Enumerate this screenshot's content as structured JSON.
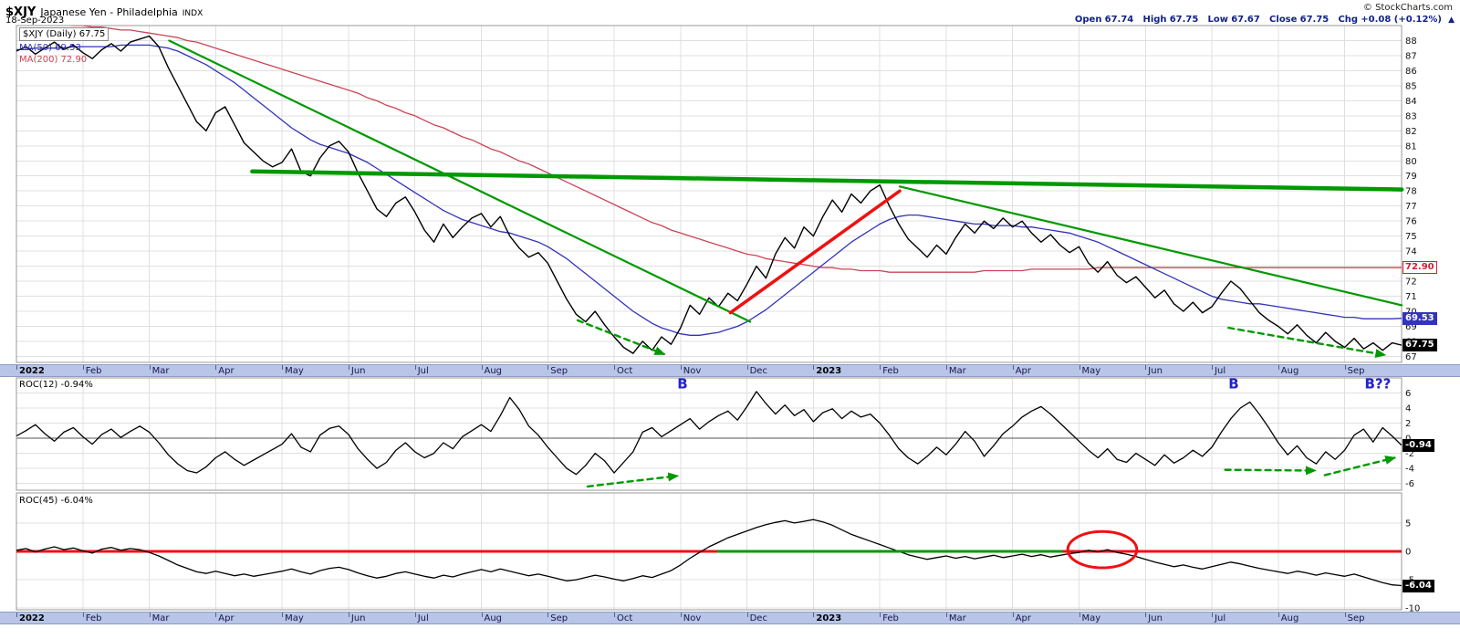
{
  "header": {
    "symbol": "$XJY",
    "name": "Japanese Yen - Philadelphia",
    "exchange": "INDX",
    "date": "18-Sep-2023",
    "copyright": "© StockCharts.com",
    "quote": {
      "open_label": "Open",
      "open": "67.74",
      "high_label": "High",
      "high": "67.75",
      "low_label": "Low",
      "low": "67.67",
      "close_label": "Close",
      "close": "67.75",
      "chg_label": "Chg",
      "chg": "+0.08 (+0.12%)",
      "chg_up_icon": "▲"
    }
  },
  "legend": {
    "main_price": "$XJY (Daily) 67.75",
    "ma50": "MA(50) 69.53",
    "ma200": "MA(200) 72.90",
    "roc12": "ROC(12) -0.94%",
    "roc45": "ROC(45) -6.04%"
  },
  "last_values": {
    "price": "67.75",
    "ma50": "69.53",
    "ma200": "72.90",
    "roc12": "-0.94",
    "roc45": "-6.04"
  },
  "colors": {
    "price": "#000000",
    "ma50": "#3333bb",
    "ma200": "#cc4455",
    "green": "#009900",
    "red": "#ee1111",
    "blue_label": "#2222cc",
    "grid": "#e0e0e0",
    "border": "#999999",
    "axis_strip": "#b9c5e8",
    "quote": "#112288"
  },
  "axis": {
    "months": [
      {
        "label": "2022",
        "bold": true
      },
      {
        "label": "Feb"
      },
      {
        "label": "Mar"
      },
      {
        "label": "Apr"
      },
      {
        "label": "May"
      },
      {
        "label": "Jun"
      },
      {
        "label": "Jul"
      },
      {
        "label": "Aug"
      },
      {
        "label": "Sep"
      },
      {
        "label": "Oct"
      },
      {
        "label": "Nov"
      },
      {
        "label": "Dec"
      },
      {
        "label": "2023",
        "bold": true
      },
      {
        "label": "Feb"
      },
      {
        "label": "Mar"
      },
      {
        "label": "Apr"
      },
      {
        "label": "May"
      },
      {
        "label": "Jun"
      },
      {
        "label": "Jul"
      },
      {
        "label": "Aug"
      },
      {
        "label": "Sep"
      }
    ],
    "price_ticks": [
      88,
      87,
      86,
      85,
      84,
      83,
      82,
      81,
      80,
      79,
      78,
      77,
      76,
      75,
      74,
      73,
      72,
      71,
      70,
      69,
      68,
      67
    ],
    "roc12_ticks": [
      6,
      4,
      2,
      0,
      -2,
      -4,
      -6
    ],
    "roc45_ticks": [
      5,
      0,
      -5,
      -10
    ]
  },
  "annotations": {
    "main": {
      "thick_resistance": {
        "from": [
          3.55,
          79.3
        ],
        "to": [
          20.86,
          78.1
        ],
        "color": "#009900",
        "width": 4.5
      },
      "downtrend_2022": {
        "from": [
          2.3,
          88.0
        ],
        "to": [
          11.05,
          69.3
        ],
        "color": "#009900",
        "width": 2.2
      },
      "downtrend_2023": {
        "from": [
          13.3,
          78.3
        ],
        "to": [
          20.86,
          70.4
        ],
        "color": "#009900",
        "width": 2.2
      },
      "rally_line": {
        "from": [
          10.75,
          69.9
        ],
        "to": [
          13.3,
          78.0
        ],
        "color": "#ee1111",
        "width": 3.5
      },
      "dashed_arrows": [
        {
          "from": [
            8.45,
            69.4
          ],
          "to": [
            9.75,
            67.15
          ],
          "color": "#009900",
          "width": 2.4,
          "dashed": true
        },
        {
          "from": [
            18.25,
            68.9
          ],
          "to": [
            20.6,
            67.1
          ],
          "color": "#009900",
          "width": 2.4,
          "dashed": true
        }
      ]
    },
    "roc12": {
      "b_labels": [
        {
          "m": 9.95,
          "v": 6.6,
          "text": "B"
        },
        {
          "m": 18.25,
          "v": 6.6,
          "text": "B"
        },
        {
          "m": 20.3,
          "v": 6.6,
          "text": "B??"
        }
      ],
      "dashed_arrows": [
        {
          "from": [
            8.6,
            -6.4
          ],
          "to": [
            9.95,
            -5.0
          ],
          "color": "#009900",
          "width": 2.4,
          "dashed": true
        },
        {
          "from": [
            18.2,
            -4.2
          ],
          "to": [
            19.55,
            -4.3
          ],
          "color": "#009900",
          "width": 2.4,
          "dashed": true
        },
        {
          "from": [
            19.7,
            -4.9
          ],
          "to": [
            20.75,
            -2.6
          ],
          "color": "#009900",
          "width": 2.4,
          "dashed": true
        }
      ]
    },
    "roc45": {
      "zero_line_color": "#ee1111",
      "green_span": {
        "from_m": 10.55,
        "to_m": 15.75,
        "color": "#009900"
      },
      "ellipse": {
        "m": 16.35,
        "v": 0.3,
        "rx_m": 0.52,
        "ry_v": 3.2,
        "color": "#ee1111"
      }
    }
  },
  "chart_data": [
    {
      "type": "line",
      "panel": "main",
      "title": "$XJY Japanese Yen - Philadelphia (Daily)",
      "x_start": "Jan-2022",
      "x_end": "18-Sep-2023",
      "months_total": 20.857,
      "ylim": [
        66.6,
        89.0
      ],
      "series": [
        {
          "name": "$XJY Daily Close",
          "color": "#000000",
          "last": 67.75,
          "values": [
            87.3,
            87.6,
            87.1,
            87.5,
            87.9,
            87.4,
            87.7,
            87.2,
            86.8,
            87.4,
            87.8,
            87.3,
            87.9,
            88.1,
            88.3,
            87.6,
            86.2,
            85.0,
            83.8,
            82.6,
            82.0,
            83.2,
            83.6,
            82.4,
            81.2,
            80.6,
            80.0,
            79.6,
            79.9,
            80.8,
            79.3,
            79.0,
            80.2,
            81.0,
            81.3,
            80.6,
            79.2,
            78.0,
            76.8,
            76.3,
            77.2,
            77.6,
            76.6,
            75.4,
            74.6,
            75.8,
            74.9,
            75.6,
            76.2,
            76.5,
            75.6,
            76.3,
            75.0,
            74.2,
            73.6,
            73.9,
            73.2,
            72.0,
            70.8,
            69.8,
            69.3,
            70.0,
            69.1,
            68.3,
            67.6,
            67.2,
            68.0,
            67.4,
            68.3,
            67.8,
            68.9,
            70.4,
            69.8,
            70.9,
            70.3,
            71.2,
            70.7,
            71.8,
            73.0,
            72.2,
            73.8,
            74.9,
            74.2,
            75.6,
            75.0,
            76.3,
            77.4,
            76.6,
            77.8,
            77.2,
            78.0,
            78.4,
            77.0,
            75.8,
            74.8,
            74.2,
            73.6,
            74.4,
            73.8,
            74.9,
            75.8,
            75.2,
            76.0,
            75.5,
            76.2,
            75.6,
            76.0,
            75.2,
            74.6,
            75.1,
            74.4,
            73.9,
            74.3,
            73.2,
            72.6,
            73.3,
            72.4,
            71.9,
            72.3,
            71.6,
            70.9,
            71.4,
            70.5,
            70.0,
            70.6,
            69.9,
            70.3,
            71.2,
            72.0,
            71.5,
            70.7,
            69.9,
            69.4,
            69.0,
            68.5,
            69.1,
            68.4,
            67.9,
            68.6,
            68.0,
            67.6,
            68.2,
            67.5,
            67.9,
            67.4,
            67.9,
            67.75
          ]
        },
        {
          "name": "MA(50)",
          "color": "#3333bb",
          "last": 69.53,
          "values": [
            87.4,
            87.4,
            87.5,
            87.5,
            87.5,
            87.5,
            87.6,
            87.6,
            87.6,
            87.6,
            87.6,
            87.7,
            87.7,
            87.7,
            87.7,
            87.6,
            87.5,
            87.3,
            87.0,
            86.7,
            86.4,
            86.0,
            85.6,
            85.2,
            84.7,
            84.2,
            83.7,
            83.2,
            82.7,
            82.2,
            81.8,
            81.4,
            81.1,
            80.9,
            80.7,
            80.5,
            80.2,
            79.9,
            79.5,
            79.1,
            78.7,
            78.3,
            77.9,
            77.5,
            77.1,
            76.7,
            76.4,
            76.1,
            75.9,
            75.7,
            75.5,
            75.3,
            75.2,
            75.0,
            74.8,
            74.6,
            74.3,
            73.9,
            73.5,
            73.0,
            72.5,
            72.0,
            71.5,
            71.0,
            70.5,
            70.0,
            69.6,
            69.2,
            68.9,
            68.7,
            68.5,
            68.4,
            68.4,
            68.5,
            68.6,
            68.8,
            69.0,
            69.3,
            69.7,
            70.1,
            70.6,
            71.1,
            71.6,
            72.1,
            72.6,
            73.1,
            73.6,
            74.1,
            74.6,
            75.0,
            75.4,
            75.8,
            76.1,
            76.3,
            76.4,
            76.4,
            76.3,
            76.2,
            76.1,
            76.0,
            75.9,
            75.8,
            75.8,
            75.7,
            75.7,
            75.7,
            75.6,
            75.6,
            75.5,
            75.4,
            75.3,
            75.2,
            75.0,
            74.8,
            74.6,
            74.3,
            74.0,
            73.7,
            73.4,
            73.1,
            72.8,
            72.5,
            72.2,
            71.9,
            71.6,
            71.3,
            71.0,
            70.8,
            70.7,
            70.6,
            70.5,
            70.5,
            70.4,
            70.3,
            70.2,
            70.1,
            70.0,
            69.9,
            69.8,
            69.7,
            69.6,
            69.6,
            69.5,
            69.5,
            69.5,
            69.5,
            69.53
          ]
        },
        {
          "name": "MA(200)",
          "color": "#cc4455",
          "last": 72.9,
          "values": [
            89.3,
            89.3,
            89.2,
            89.2,
            89.1,
            89.1,
            89.0,
            89.0,
            88.9,
            88.9,
            88.8,
            88.7,
            88.7,
            88.6,
            88.5,
            88.4,
            88.3,
            88.2,
            88.0,
            87.9,
            87.7,
            87.5,
            87.3,
            87.1,
            86.9,
            86.7,
            86.5,
            86.3,
            86.1,
            85.9,
            85.7,
            85.5,
            85.3,
            85.1,
            84.9,
            84.7,
            84.5,
            84.2,
            84.0,
            83.7,
            83.5,
            83.2,
            83.0,
            82.7,
            82.4,
            82.2,
            81.9,
            81.6,
            81.4,
            81.1,
            80.8,
            80.6,
            80.3,
            80.0,
            79.8,
            79.5,
            79.2,
            78.9,
            78.6,
            78.3,
            78.0,
            77.7,
            77.4,
            77.1,
            76.8,
            76.5,
            76.2,
            75.9,
            75.7,
            75.4,
            75.2,
            75.0,
            74.8,
            74.6,
            74.4,
            74.2,
            74.0,
            73.8,
            73.7,
            73.5,
            73.4,
            73.3,
            73.2,
            73.1,
            73.0,
            72.9,
            72.9,
            72.8,
            72.8,
            72.7,
            72.7,
            72.7,
            72.6,
            72.6,
            72.6,
            72.6,
            72.6,
            72.6,
            72.6,
            72.6,
            72.6,
            72.6,
            72.7,
            72.7,
            72.7,
            72.7,
            72.7,
            72.8,
            72.8,
            72.8,
            72.8,
            72.8,
            72.8,
            72.8,
            72.9,
            72.9,
            72.9,
            72.9,
            72.9,
            72.9,
            72.9,
            72.9,
            72.9,
            72.9,
            72.9,
            72.9,
            72.9,
            72.9,
            72.9,
            72.9,
            72.9,
            72.9,
            72.9,
            72.9,
            72.9,
            72.9,
            72.9,
            72.9,
            72.9,
            72.9,
            72.9,
            72.9,
            72.9,
            72.9,
            72.9,
            72.9,
            72.9
          ]
        }
      ]
    },
    {
      "type": "line",
      "panel": "roc12",
      "title": "ROC(12)",
      "last": -0.94,
      "ylim": [
        -6.9,
        8.0
      ],
      "values": [
        0.3,
        1.0,
        1.8,
        0.6,
        -0.4,
        0.8,
        1.4,
        0.2,
        -0.8,
        0.5,
        1.2,
        0.1,
        0.9,
        1.6,
        0.8,
        -0.6,
        -2.2,
        -3.4,
        -4.3,
        -4.6,
        -3.8,
        -2.6,
        -1.8,
        -2.8,
        -3.6,
        -2.9,
        -2.2,
        -1.5,
        -0.8,
        0.6,
        -1.2,
        -1.8,
        0.4,
        1.3,
        1.6,
        0.5,
        -1.4,
        -2.8,
        -4.0,
        -3.2,
        -1.6,
        -0.6,
        -1.8,
        -2.6,
        -2.0,
        -0.6,
        -1.4,
        0.2,
        1.0,
        1.8,
        0.9,
        3.0,
        5.4,
        3.8,
        1.6,
        0.4,
        -1.2,
        -2.6,
        -4.0,
        -4.8,
        -3.6,
        -2.0,
        -3.0,
        -4.6,
        -3.2,
        -1.8,
        0.8,
        1.4,
        0.2,
        1.0,
        1.8,
        2.6,
        1.2,
        2.2,
        3.0,
        3.6,
        2.4,
        4.2,
        6.2,
        4.6,
        3.2,
        4.4,
        3.0,
        3.8,
        2.2,
        3.4,
        3.9,
        2.6,
        3.6,
        2.8,
        3.2,
        2.0,
        0.4,
        -1.4,
        -2.6,
        -3.4,
        -2.4,
        -1.2,
        -2.2,
        -0.8,
        0.9,
        -0.4,
        -2.4,
        -1.0,
        0.6,
        1.6,
        2.8,
        3.6,
        4.2,
        3.2,
        2.0,
        0.8,
        -0.4,
        -1.6,
        -2.6,
        -1.4,
        -2.8,
        -3.2,
        -2.0,
        -2.8,
        -3.6,
        -2.2,
        -3.3,
        -2.6,
        -1.6,
        -2.4,
        -1.2,
        0.8,
        2.6,
        4.0,
        4.8,
        3.2,
        1.4,
        -0.6,
        -2.2,
        -1.0,
        -2.6,
        -3.4,
        -1.8,
        -2.8,
        -1.6,
        0.4,
        1.2,
        -0.5,
        1.4,
        0.3,
        -0.94
      ]
    },
    {
      "type": "line",
      "panel": "roc45",
      "title": "ROC(45)",
      "last": -6.04,
      "ylim": [
        -10.3,
        10.3
      ],
      "values": [
        0.2,
        0.5,
        -0.1,
        0.4,
        0.8,
        0.3,
        0.6,
        0.1,
        -0.3,
        0.4,
        0.7,
        0.2,
        0.5,
        0.3,
        -0.2,
        -0.8,
        -1.6,
        -2.4,
        -3.0,
        -3.6,
        -3.9,
        -3.5,
        -3.9,
        -4.3,
        -4.0,
        -4.4,
        -4.1,
        -3.8,
        -3.5,
        -3.1,
        -3.6,
        -4.0,
        -3.4,
        -3.0,
        -2.8,
        -3.2,
        -3.8,
        -4.3,
        -4.7,
        -4.4,
        -3.9,
        -3.6,
        -4.0,
        -4.4,
        -4.7,
        -4.2,
        -4.5,
        -4.0,
        -3.6,
        -3.2,
        -3.6,
        -3.1,
        -3.5,
        -3.9,
        -4.3,
        -4.0,
        -4.4,
        -4.8,
        -5.2,
        -5.0,
        -4.6,
        -4.2,
        -4.5,
        -4.9,
        -5.2,
        -4.8,
        -4.3,
        -4.6,
        -4.0,
        -3.4,
        -2.4,
        -1.2,
        -0.2,
        0.8,
        1.6,
        2.4,
        3.0,
        3.6,
        4.2,
        4.7,
        5.1,
        5.4,
        5.0,
        5.3,
        5.6,
        5.2,
        4.6,
        3.8,
        3.0,
        2.4,
        1.8,
        1.2,
        0.6,
        0.0,
        -0.6,
        -1.0,
        -1.4,
        -1.1,
        -0.8,
        -1.2,
        -0.9,
        -1.3,
        -1.0,
        -0.7,
        -1.1,
        -0.8,
        -0.5,
        -0.9,
        -0.6,
        -1.0,
        -0.7,
        -0.4,
        -0.2,
        0.2,
        -0.1,
        0.3,
        -0.2,
        -0.5,
        -0.9,
        -1.4,
        -1.9,
        -2.3,
        -2.7,
        -2.4,
        -2.8,
        -3.1,
        -2.7,
        -2.3,
        -1.9,
        -2.2,
        -2.6,
        -3.0,
        -3.3,
        -3.6,
        -3.9,
        -3.5,
        -3.8,
        -4.2,
        -3.8,
        -4.1,
        -4.4,
        -4.0,
        -4.5,
        -5.0,
        -5.5,
        -5.9,
        -6.04
      ]
    }
  ]
}
